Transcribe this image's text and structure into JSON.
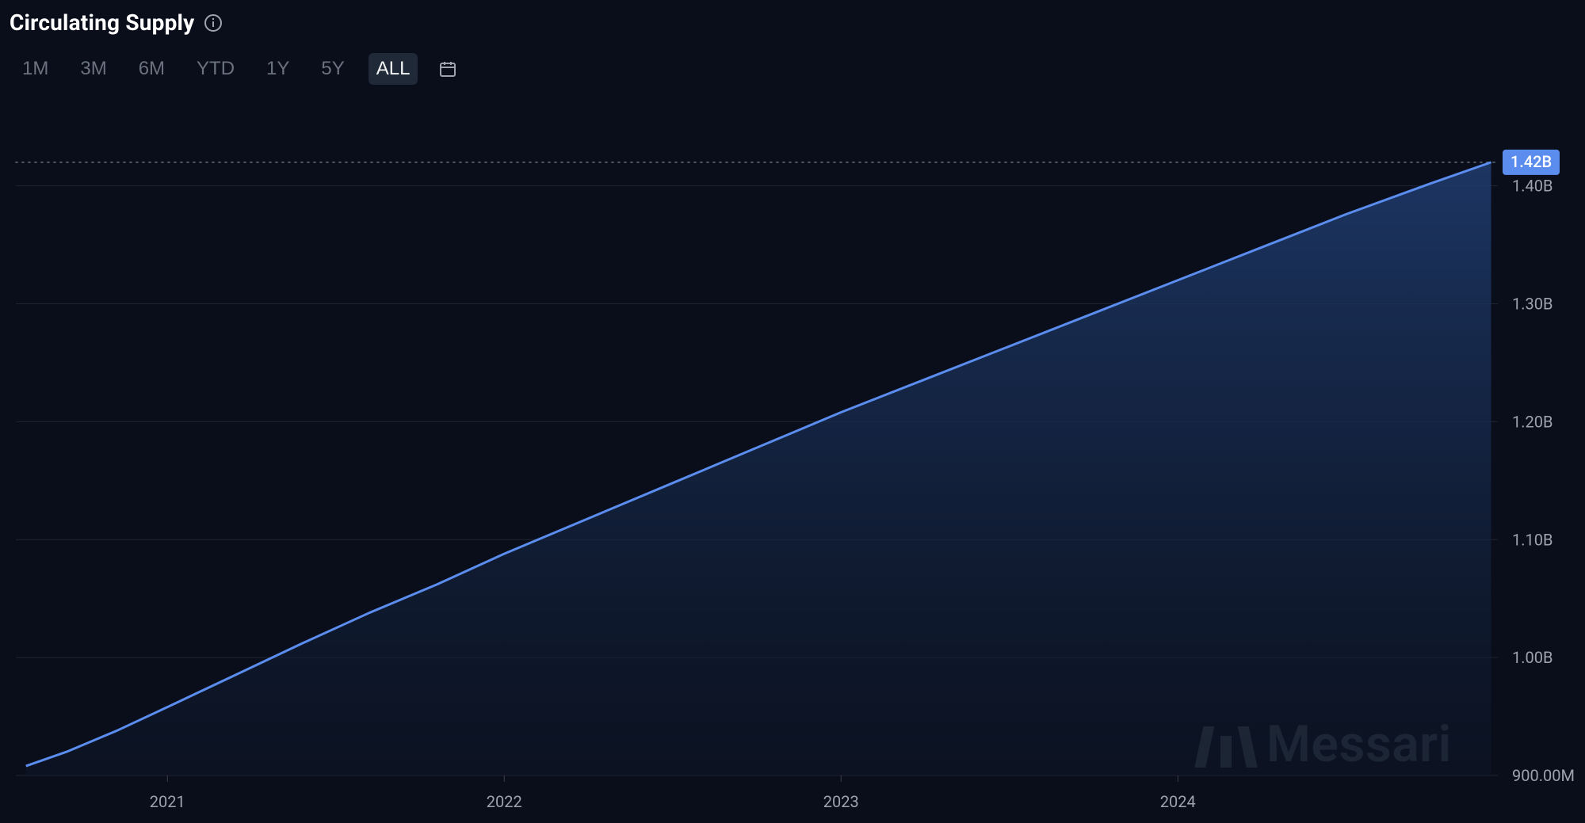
{
  "header": {
    "title": "Circulating Supply"
  },
  "ranges": {
    "items": [
      "1M",
      "3M",
      "6M",
      "YTD",
      "1Y",
      "5Y",
      "ALL"
    ],
    "active": "ALL"
  },
  "chart": {
    "type": "area",
    "background_color": "#0a0e1a",
    "grid_color": "#1f2530",
    "dotted_color": "#4b5563",
    "line_color": "#5b8def",
    "area_top_color": "#1e3a6b",
    "area_bottom_color": "#0d1628",
    "line_width": 3,
    "axis_label_color": "#9ca3af",
    "axis_fontsize": 20,
    "ylim": [
      900,
      1430
    ],
    "yticks": [
      {
        "v": 900,
        "label": "900.00M"
      },
      {
        "v": 1000,
        "label": "1.00B"
      },
      {
        "v": 1100,
        "label": "1.10B"
      },
      {
        "v": 1200,
        "label": "1.20B"
      },
      {
        "v": 1300,
        "label": "1.30B"
      },
      {
        "v": 1400,
        "label": "1.40B"
      }
    ],
    "xlim": [
      2020.55,
      2024.95
    ],
    "xticks": [
      {
        "v": 2021,
        "label": "2021"
      },
      {
        "v": 2022,
        "label": "2022"
      },
      {
        "v": 2023,
        "label": "2023"
      },
      {
        "v": 2024,
        "label": "2024"
      }
    ],
    "series": [
      {
        "x": 2020.58,
        "y": 908
      },
      {
        "x": 2020.7,
        "y": 920
      },
      {
        "x": 2020.85,
        "y": 938
      },
      {
        "x": 2021.0,
        "y": 958
      },
      {
        "x": 2021.2,
        "y": 985
      },
      {
        "x": 2021.4,
        "y": 1012
      },
      {
        "x": 2021.6,
        "y": 1038
      },
      {
        "x": 2021.8,
        "y": 1062
      },
      {
        "x": 2022.0,
        "y": 1088
      },
      {
        "x": 2022.25,
        "y": 1118
      },
      {
        "x": 2022.5,
        "y": 1148
      },
      {
        "x": 2022.75,
        "y": 1178
      },
      {
        "x": 2023.0,
        "y": 1208
      },
      {
        "x": 2023.25,
        "y": 1236
      },
      {
        "x": 2023.5,
        "y": 1264
      },
      {
        "x": 2023.75,
        "y": 1292
      },
      {
        "x": 2024.0,
        "y": 1320
      },
      {
        "x": 2024.25,
        "y": 1348
      },
      {
        "x": 2024.5,
        "y": 1376
      },
      {
        "x": 2024.75,
        "y": 1402
      },
      {
        "x": 2024.93,
        "y": 1420
      }
    ],
    "current_badge": {
      "label": "1.42B",
      "value": 1420,
      "bg": "#5b8def",
      "text_color": "#ffffff"
    },
    "watermark": "Messari"
  }
}
